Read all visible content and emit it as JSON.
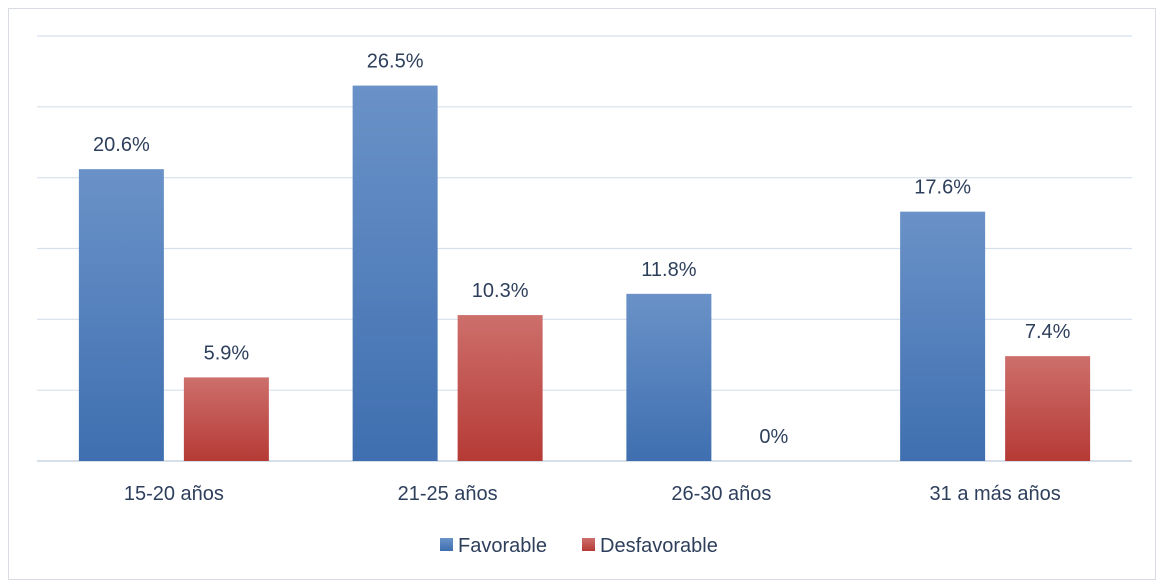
{
  "chart_data": {
    "type": "bar",
    "categories": [
      "15-20 años",
      "21-25 años",
      "26-30 años",
      "31 a más años"
    ],
    "series": [
      {
        "name": "Favorable",
        "values": [
          20.6,
          26.5,
          11.8,
          17.6
        ],
        "labels": [
          "20.6%",
          "26.5%",
          "11.8%",
          "17.6%"
        ],
        "color": "#4a7ebf"
      },
      {
        "name": "Desfavorable",
        "values": [
          5.9,
          10.3,
          0,
          7.4
        ],
        "labels": [
          "5.9%",
          "10.3%",
          "0%",
          "7.4%"
        ],
        "color": "#c0504d"
      }
    ],
    "ylim": [
      0,
      30
    ],
    "y_gridlines": [
      0,
      5,
      10,
      15,
      20,
      25,
      30
    ],
    "grid": true,
    "legend_position": "bottom"
  }
}
